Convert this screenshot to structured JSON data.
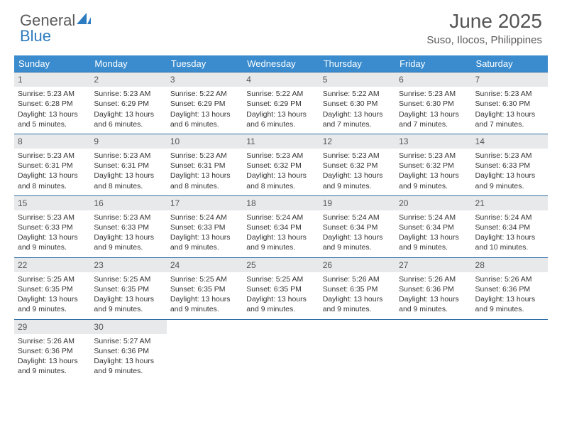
{
  "brand": {
    "word1": "General",
    "word2": "Blue"
  },
  "title": "June 2025",
  "location": "Suso, Ilocos, Philippines",
  "colors": {
    "header_bg": "#3a8cce",
    "header_text": "#ffffff",
    "week_divider": "#2d6fa8",
    "daynum_bg": "#e7e9ea",
    "body_text": "#333333",
    "brand_blue": "#2d7bc0",
    "brand_gray": "#5a5a5a"
  },
  "day_names": [
    "Sunday",
    "Monday",
    "Tuesday",
    "Wednesday",
    "Thursday",
    "Friday",
    "Saturday"
  ],
  "days": [
    {
      "n": "1",
      "sr": "5:23 AM",
      "ss": "6:28 PM",
      "dl": "13 hours and 5 minutes."
    },
    {
      "n": "2",
      "sr": "5:23 AM",
      "ss": "6:29 PM",
      "dl": "13 hours and 6 minutes."
    },
    {
      "n": "3",
      "sr": "5:22 AM",
      "ss": "6:29 PM",
      "dl": "13 hours and 6 minutes."
    },
    {
      "n": "4",
      "sr": "5:22 AM",
      "ss": "6:29 PM",
      "dl": "13 hours and 6 minutes."
    },
    {
      "n": "5",
      "sr": "5:22 AM",
      "ss": "6:30 PM",
      "dl": "13 hours and 7 minutes."
    },
    {
      "n": "6",
      "sr": "5:23 AM",
      "ss": "6:30 PM",
      "dl": "13 hours and 7 minutes."
    },
    {
      "n": "7",
      "sr": "5:23 AM",
      "ss": "6:30 PM",
      "dl": "13 hours and 7 minutes."
    },
    {
      "n": "8",
      "sr": "5:23 AM",
      "ss": "6:31 PM",
      "dl": "13 hours and 8 minutes."
    },
    {
      "n": "9",
      "sr": "5:23 AM",
      "ss": "6:31 PM",
      "dl": "13 hours and 8 minutes."
    },
    {
      "n": "10",
      "sr": "5:23 AM",
      "ss": "6:31 PM",
      "dl": "13 hours and 8 minutes."
    },
    {
      "n": "11",
      "sr": "5:23 AM",
      "ss": "6:32 PM",
      "dl": "13 hours and 8 minutes."
    },
    {
      "n": "12",
      "sr": "5:23 AM",
      "ss": "6:32 PM",
      "dl": "13 hours and 9 minutes."
    },
    {
      "n": "13",
      "sr": "5:23 AM",
      "ss": "6:32 PM",
      "dl": "13 hours and 9 minutes."
    },
    {
      "n": "14",
      "sr": "5:23 AM",
      "ss": "6:33 PM",
      "dl": "13 hours and 9 minutes."
    },
    {
      "n": "15",
      "sr": "5:23 AM",
      "ss": "6:33 PM",
      "dl": "13 hours and 9 minutes."
    },
    {
      "n": "16",
      "sr": "5:23 AM",
      "ss": "6:33 PM",
      "dl": "13 hours and 9 minutes."
    },
    {
      "n": "17",
      "sr": "5:24 AM",
      "ss": "6:33 PM",
      "dl": "13 hours and 9 minutes."
    },
    {
      "n": "18",
      "sr": "5:24 AM",
      "ss": "6:34 PM",
      "dl": "13 hours and 9 minutes."
    },
    {
      "n": "19",
      "sr": "5:24 AM",
      "ss": "6:34 PM",
      "dl": "13 hours and 9 minutes."
    },
    {
      "n": "20",
      "sr": "5:24 AM",
      "ss": "6:34 PM",
      "dl": "13 hours and 9 minutes."
    },
    {
      "n": "21",
      "sr": "5:24 AM",
      "ss": "6:34 PM",
      "dl": "13 hours and 10 minutes."
    },
    {
      "n": "22",
      "sr": "5:25 AM",
      "ss": "6:35 PM",
      "dl": "13 hours and 9 minutes."
    },
    {
      "n": "23",
      "sr": "5:25 AM",
      "ss": "6:35 PM",
      "dl": "13 hours and 9 minutes."
    },
    {
      "n": "24",
      "sr": "5:25 AM",
      "ss": "6:35 PM",
      "dl": "13 hours and 9 minutes."
    },
    {
      "n": "25",
      "sr": "5:25 AM",
      "ss": "6:35 PM",
      "dl": "13 hours and 9 minutes."
    },
    {
      "n": "26",
      "sr": "5:26 AM",
      "ss": "6:35 PM",
      "dl": "13 hours and 9 minutes."
    },
    {
      "n": "27",
      "sr": "5:26 AM",
      "ss": "6:36 PM",
      "dl": "13 hours and 9 minutes."
    },
    {
      "n": "28",
      "sr": "5:26 AM",
      "ss": "6:36 PM",
      "dl": "13 hours and 9 minutes."
    },
    {
      "n": "29",
      "sr": "5:26 AM",
      "ss": "6:36 PM",
      "dl": "13 hours and 9 minutes."
    },
    {
      "n": "30",
      "sr": "5:27 AM",
      "ss": "6:36 PM",
      "dl": "13 hours and 9 minutes."
    }
  ],
  "labels": {
    "sunrise": "Sunrise:",
    "sunset": "Sunset:",
    "daylight": "Daylight:"
  },
  "layout": {
    "first_day_col": 0,
    "cols": 7
  }
}
